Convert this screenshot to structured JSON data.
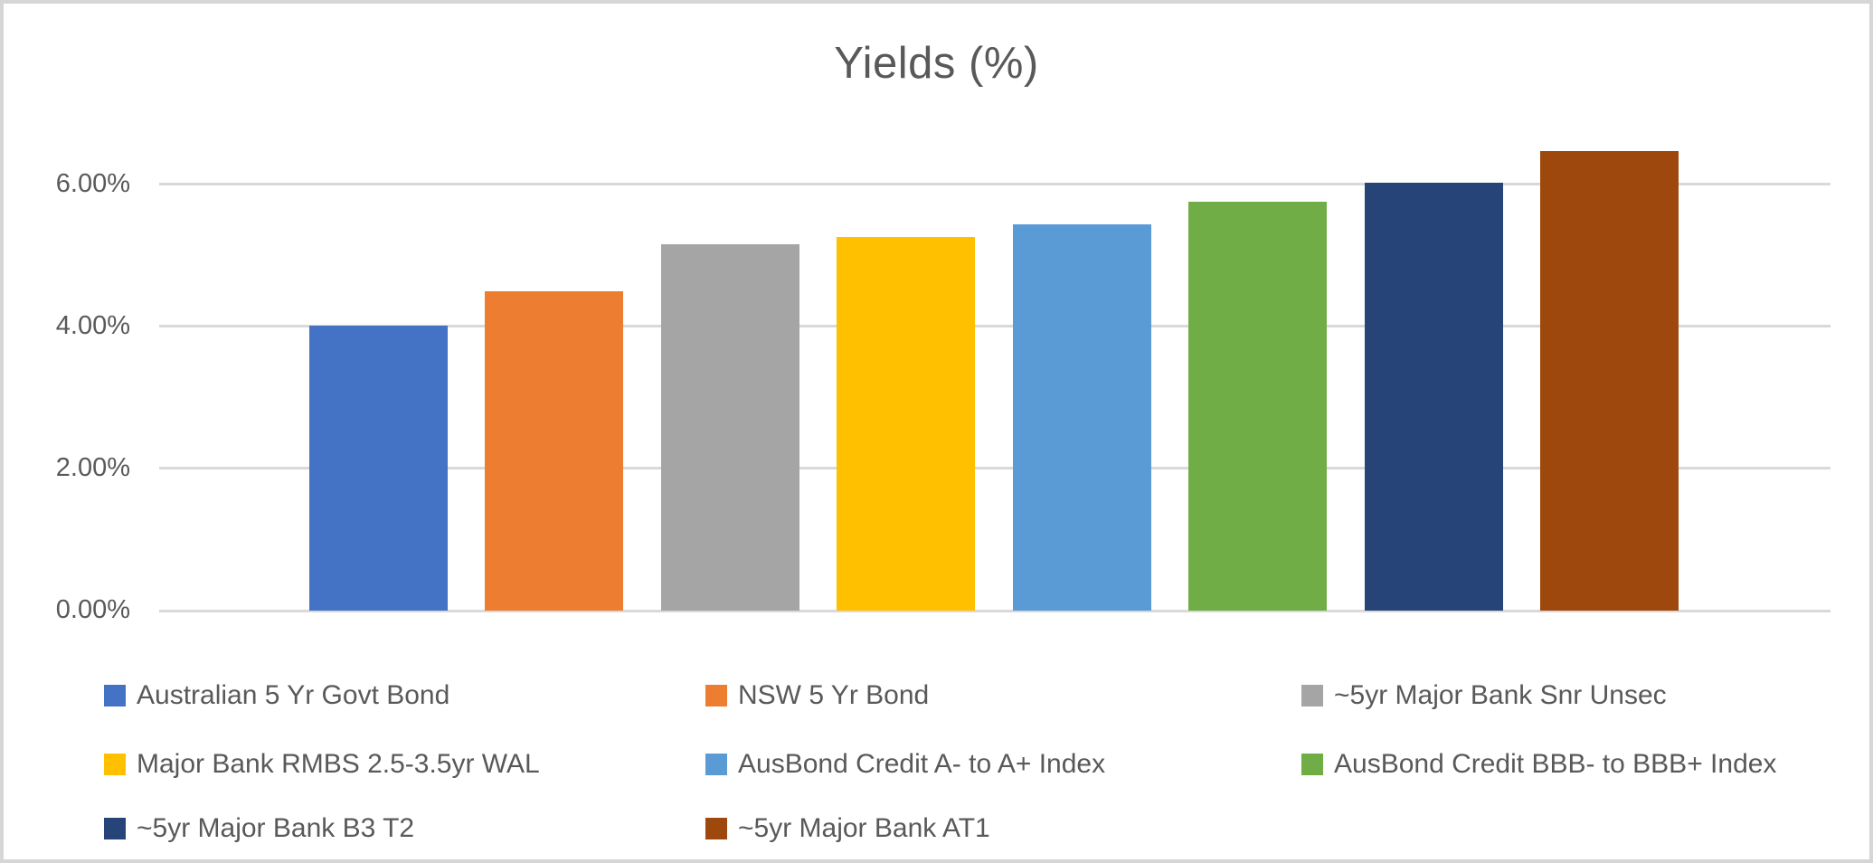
{
  "chart_data": {
    "type": "bar",
    "title": "Yields (%)",
    "categories": [
      ""
    ],
    "series": [
      {
        "name": "Australian 5 Yr Govt Bond",
        "color": "#4472C4",
        "values": [
          4.01
        ]
      },
      {
        "name": "NSW 5 Yr Bond",
        "color": "#ED7D31",
        "values": [
          4.49
        ]
      },
      {
        "name": "~5yr Major Bank Snr Unsec",
        "color": "#A5A5A5",
        "values": [
          5.15
        ]
      },
      {
        "name": "Major Bank RMBS 2.5-3.5yr WAL",
        "color": "#FFC000",
        "values": [
          5.25
        ]
      },
      {
        "name": "AusBond Credit A- to A+ Index",
        "color": "#5B9BD5",
        "values": [
          5.44
        ]
      },
      {
        "name": "AusBond Credit BBB- to BBB+ Index",
        "color": "#70AD47",
        "values": [
          5.75
        ]
      },
      {
        "name": "~5yr Major Bank B3 T2",
        "color": "#264478",
        "values": [
          6.02
        ]
      },
      {
        "name": "~5yr Major Bank AT1",
        "color": "#9E480E",
        "values": [
          6.46
        ]
      }
    ],
    "ylabel": "",
    "xlabel": "",
    "ylim": [
      0,
      7
    ],
    "yticks": [
      {
        "label": "0.00%",
        "value": 0
      },
      {
        "label": "2.00%",
        "value": 2
      },
      {
        "label": "4.00%",
        "value": 4
      },
      {
        "label": "6.00%",
        "value": 6
      }
    ],
    "grid": true,
    "legend_position": "bottom",
    "colors": {
      "text": "#595959",
      "gridline": "#D9D9D9",
      "frame_border": "#D6D6D6",
      "background": "#FFFFFF"
    }
  }
}
